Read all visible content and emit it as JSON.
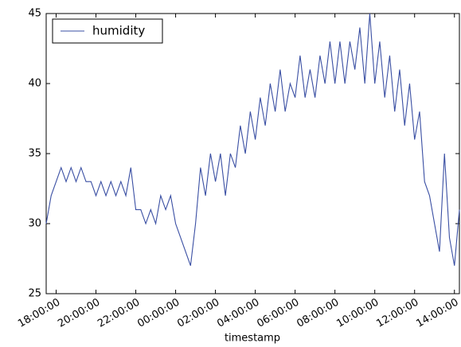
{
  "chart_data": {
    "type": "line",
    "x_label": "timestamp",
    "x": [
      "17:30:00",
      "17:45:00",
      "18:00:00",
      "18:15:00",
      "18:30:00",
      "18:45:00",
      "19:00:00",
      "19:15:00",
      "19:30:00",
      "19:45:00",
      "20:00:00",
      "20:15:00",
      "20:30:00",
      "20:45:00",
      "21:00:00",
      "21:15:00",
      "21:30:00",
      "21:45:00",
      "22:00:00",
      "22:15:00",
      "22:30:00",
      "22:45:00",
      "23:00:00",
      "23:15:00",
      "23:30:00",
      "23:45:00",
      "00:00:00",
      "00:15:00",
      "00:30:00",
      "00:45:00",
      "01:00:00",
      "01:15:00",
      "01:30:00",
      "01:45:00",
      "02:00:00",
      "02:15:00",
      "02:30:00",
      "02:45:00",
      "03:00:00",
      "03:15:00",
      "03:30:00",
      "03:45:00",
      "04:00:00",
      "04:15:00",
      "04:30:00",
      "04:45:00",
      "05:00:00",
      "05:15:00",
      "05:30:00",
      "05:45:00",
      "06:00:00",
      "06:15:00",
      "06:30:00",
      "06:45:00",
      "07:00:00",
      "07:15:00",
      "07:30:00",
      "07:45:00",
      "08:00:00",
      "08:15:00",
      "08:30:00",
      "08:45:00",
      "09:00:00",
      "09:15:00",
      "09:30:00",
      "09:45:00",
      "10:00:00",
      "10:15:00",
      "10:30:00",
      "10:45:00",
      "11:00:00",
      "11:15:00",
      "11:30:00",
      "11:45:00",
      "12:00:00",
      "12:15:00",
      "12:30:00",
      "12:45:00",
      "13:00:00",
      "13:15:00",
      "13:30:00",
      "13:45:00",
      "14:00:00",
      "14:15:00"
    ],
    "series": [
      {
        "name": "humidity",
        "color": "#3a4fa3",
        "values": [
          30,
          32,
          33,
          34,
          33,
          34,
          33,
          34,
          33,
          33,
          32,
          33,
          32,
          33,
          32,
          33,
          32,
          34,
          31,
          31,
          30,
          31,
          30,
          32,
          31,
          32,
          30,
          29,
          28,
          27,
          30,
          34,
          32,
          35,
          33,
          35,
          32,
          35,
          34,
          37,
          35,
          38,
          36,
          39,
          37,
          40,
          38,
          41,
          38,
          40,
          39,
          42,
          39,
          41,
          39,
          42,
          40,
          43,
          40,
          43,
          40,
          43,
          41,
          44,
          40,
          45,
          40,
          43,
          39,
          42,
          38,
          41,
          37,
          40,
          36,
          38,
          33,
          32,
          30,
          28,
          35,
          29,
          27,
          31
        ]
      }
    ],
    "xticks": [
      "18:00:00",
      "20:00:00",
      "22:00:00",
      "00:00:00",
      "02:00:00",
      "04:00:00",
      "06:00:00",
      "08:00:00",
      "10:00:00",
      "12:00:00",
      "14:00:00"
    ],
    "ylim": [
      25,
      45
    ],
    "yticks": [
      25,
      30,
      35,
      40,
      45
    ],
    "legend": "upper left"
  }
}
